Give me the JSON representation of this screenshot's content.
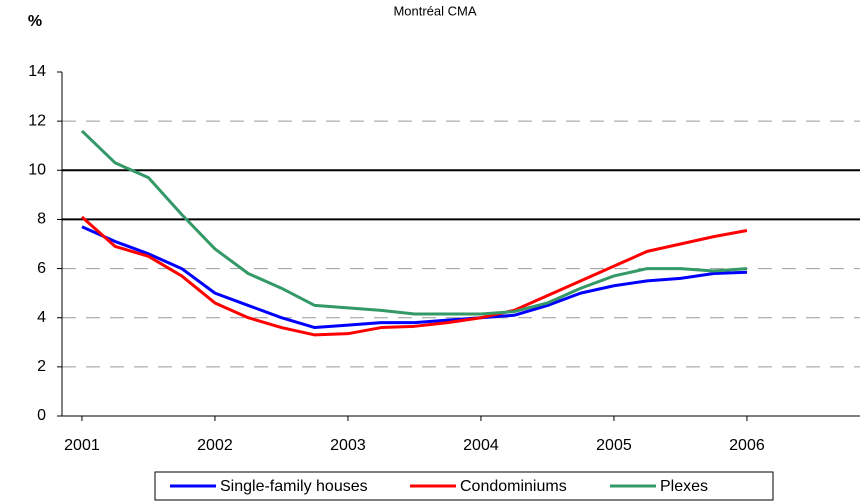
{
  "chart_data": {
    "type": "line",
    "title": "Montréal CMA",
    "y_label": "%",
    "x": [
      2001,
      2001.25,
      2001.5,
      2001.75,
      2002,
      2002.25,
      2002.5,
      2002.75,
      2003,
      2003.25,
      2003.5,
      2003.75,
      2004,
      2004.25,
      2004.5,
      2004.75,
      2005,
      2005.25,
      2005.5,
      2005.75,
      2006
    ],
    "xlim": [
      2000.85,
      2006.85
    ],
    "xticks": [
      2001,
      2002,
      2003,
      2004,
      2005,
      2006
    ],
    "ylim": [
      0,
      14
    ],
    "yticks": [
      0,
      2,
      4,
      6,
      8,
      10,
      12,
      14
    ],
    "grid": true,
    "reference_lines": [
      8,
      10
    ],
    "series": [
      {
        "name": "Single-family houses",
        "color": "#0000ff",
        "values": [
          7.7,
          7.1,
          6.6,
          6.0,
          5.0,
          4.5,
          4.0,
          3.6,
          3.7,
          3.8,
          3.8,
          3.9,
          4.0,
          4.1,
          4.5,
          5.0,
          5.3,
          5.5,
          5.6,
          5.8,
          5.85
        ]
      },
      {
        "name": "Condominiums",
        "color": "#ff0000",
        "values": [
          8.1,
          6.9,
          6.5,
          5.7,
          4.6,
          4.0,
          3.6,
          3.3,
          3.35,
          3.6,
          3.65,
          3.8,
          4.0,
          4.3,
          4.9,
          5.5,
          6.1,
          6.7,
          7.0,
          7.3,
          7.55
        ]
      },
      {
        "name": "Plexes",
        "color": "#339966",
        "values": [
          11.6,
          10.3,
          9.7,
          8.2,
          6.8,
          5.8,
          5.2,
          4.5,
          4.4,
          4.3,
          4.15,
          4.15,
          4.15,
          4.25,
          4.6,
          5.2,
          5.7,
          6.0,
          6.0,
          5.9,
          6.0
        ]
      }
    ]
  }
}
